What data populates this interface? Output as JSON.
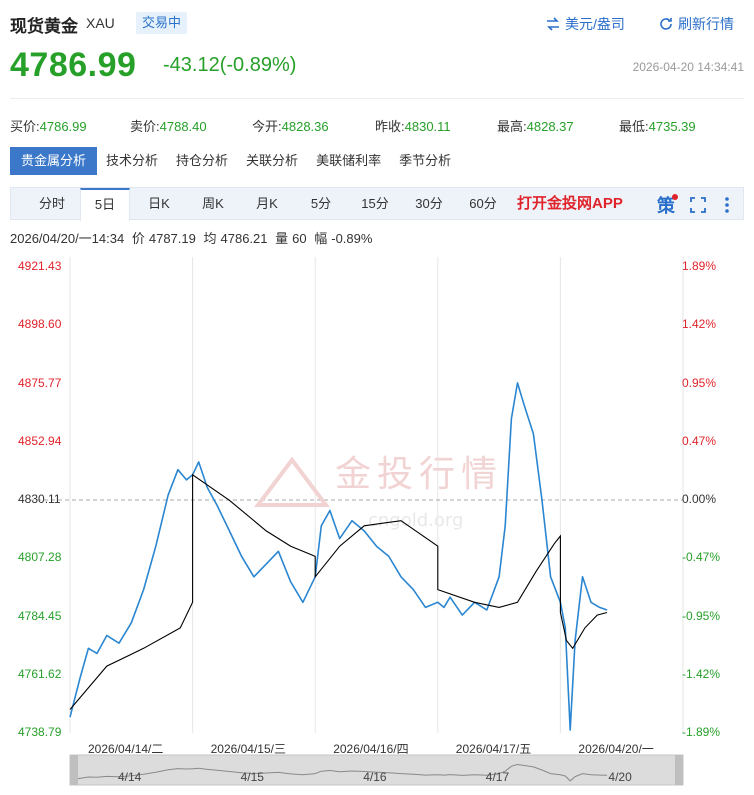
{
  "header": {
    "title": "现货黄金",
    "code": "XAU",
    "status_badge": "交易中",
    "unit_button": "美元/盎司",
    "refresh_button": "刷新行情"
  },
  "quote": {
    "price": "4786.99",
    "change": "-43.12(-0.89%)",
    "timestamp": "2026-04-20 14:34:41"
  },
  "stats": [
    {
      "label": "买价:",
      "value": "4786.99"
    },
    {
      "label": "卖价:",
      "value": "4788.40"
    },
    {
      "label": "今开:",
      "value": "4828.36"
    },
    {
      "label": "昨收:",
      "value": "4830.11"
    },
    {
      "label": "最高:",
      "value": "4828.37"
    },
    {
      "label": "最低:",
      "value": "4735.39"
    }
  ],
  "tabs": [
    "贵金属分析",
    "技术分析",
    "持仓分析",
    "关联分析",
    "美联储利率",
    "季节分析"
  ],
  "timeframes": [
    "分时",
    "5日",
    "日K",
    "周K",
    "月K",
    "5分",
    "15分",
    "30分",
    "60分"
  ],
  "active_timeframe": "5日",
  "app_link": "打开金投网APP",
  "toolbar_icons": {
    "strategy": "策",
    "fullscreen": "fullscreen-icon",
    "more": "more-icon"
  },
  "info_line": {
    "datetime": "2026/04/20/一14:34",
    "price_label": "价",
    "price": "4787.19",
    "avg_label": "均",
    "avg": "4786.21",
    "vol_label": "量",
    "vol": "60",
    "range_label": "幅",
    "range": "-0.89%"
  },
  "watermark": {
    "text": "金投行情",
    "url": "cngold.org"
  },
  "colors": {
    "up": "#e0242b",
    "down": "#27a02a",
    "line": "#2a86d1",
    "avg": "#000000",
    "accent": "#3b78c9"
  },
  "chart_data": {
    "type": "line",
    "y_ticks_left": [
      "4921.43",
      "4898.60",
      "4875.77",
      "4852.94",
      "4830.11",
      "4807.28",
      "4784.45",
      "4761.62",
      "4738.79"
    ],
    "y_ticks_right": [
      "1.89%",
      "1.42%",
      "0.95%",
      "0.47%",
      "0.00%",
      "-0.47%",
      "-0.95%",
      "-1.42%",
      "-1.89%"
    ],
    "ylim": [
      4738.79,
      4921.43
    ],
    "prev_close": 4830.11,
    "x_labels": [
      "2026/04/14/二",
      "2026/04/15/三",
      "2026/04/16/四",
      "2026/04/17/五",
      "2026/04/20/一"
    ],
    "navigator_labels": [
      "4/14",
      "4/15",
      "4/16",
      "4/17",
      "4/20"
    ],
    "series": [
      {
        "name": "价",
        "values": [
          [
            0.0,
            4745
          ],
          [
            0.08,
            4760
          ],
          [
            0.15,
            4772
          ],
          [
            0.22,
            4770
          ],
          [
            0.3,
            4777
          ],
          [
            0.4,
            4774
          ],
          [
            0.5,
            4782
          ],
          [
            0.6,
            4795
          ],
          [
            0.7,
            4812
          ],
          [
            0.8,
            4832
          ],
          [
            0.88,
            4842
          ],
          [
            0.95,
            4838
          ],
          [
            1.0,
            4840
          ],
          [
            1.05,
            4845
          ],
          [
            1.12,
            4835
          ],
          [
            1.2,
            4828
          ],
          [
            1.3,
            4818
          ],
          [
            1.4,
            4808
          ],
          [
            1.5,
            4800
          ],
          [
            1.6,
            4805
          ],
          [
            1.7,
            4810
          ],
          [
            1.8,
            4798
          ],
          [
            1.9,
            4790
          ],
          [
            2.0,
            4800
          ],
          [
            2.05,
            4820
          ],
          [
            2.12,
            4826
          ],
          [
            2.2,
            4815
          ],
          [
            2.3,
            4822
          ],
          [
            2.4,
            4818
          ],
          [
            2.5,
            4812
          ],
          [
            2.6,
            4808
          ],
          [
            2.7,
            4800
          ],
          [
            2.8,
            4795
          ],
          [
            2.9,
            4788
          ],
          [
            3.0,
            4790
          ],
          [
            3.05,
            4788
          ],
          [
            3.1,
            4792
          ],
          [
            3.2,
            4785
          ],
          [
            3.3,
            4790
          ],
          [
            3.4,
            4787
          ],
          [
            3.5,
            4800
          ],
          [
            3.55,
            4820
          ],
          [
            3.6,
            4862
          ],
          [
            3.65,
            4876
          ],
          [
            3.7,
            4868
          ],
          [
            3.78,
            4856
          ],
          [
            3.85,
            4830
          ],
          [
            3.92,
            4800
          ],
          [
            4.0,
            4790
          ],
          [
            4.04,
            4780
          ],
          [
            4.08,
            4740
          ],
          [
            4.12,
            4775
          ],
          [
            4.18,
            4800
          ],
          [
            4.25,
            4790
          ],
          [
            4.32,
            4788
          ],
          [
            4.38,
            4787
          ]
        ]
      },
      {
        "name": "均",
        "values": [
          [
            0.0,
            4748
          ],
          [
            0.3,
            4765
          ],
          [
            0.6,
            4772
          ],
          [
            0.9,
            4780
          ],
          [
            1.0,
            4790
          ],
          [
            1.0,
            4840
          ],
          [
            1.3,
            4830
          ],
          [
            1.6,
            4818
          ],
          [
            1.8,
            4812
          ],
          [
            1.9,
            4810
          ],
          [
            2.0,
            4808
          ],
          [
            2.0,
            4800
          ],
          [
            2.2,
            4812
          ],
          [
            2.4,
            4820
          ],
          [
            2.7,
            4822
          ],
          [
            2.85,
            4817
          ],
          [
            3.0,
            4812
          ],
          [
            3.0,
            4795
          ],
          [
            3.3,
            4790
          ],
          [
            3.5,
            4788
          ],
          [
            3.65,
            4790
          ],
          [
            3.8,
            4802
          ],
          [
            3.95,
            4813
          ],
          [
            4.0,
            4816
          ],
          [
            4.0,
            4786
          ],
          [
            4.05,
            4775
          ],
          [
            4.1,
            4772
          ],
          [
            4.2,
            4780
          ],
          [
            4.3,
            4785
          ],
          [
            4.38,
            4786
          ]
        ]
      }
    ]
  }
}
